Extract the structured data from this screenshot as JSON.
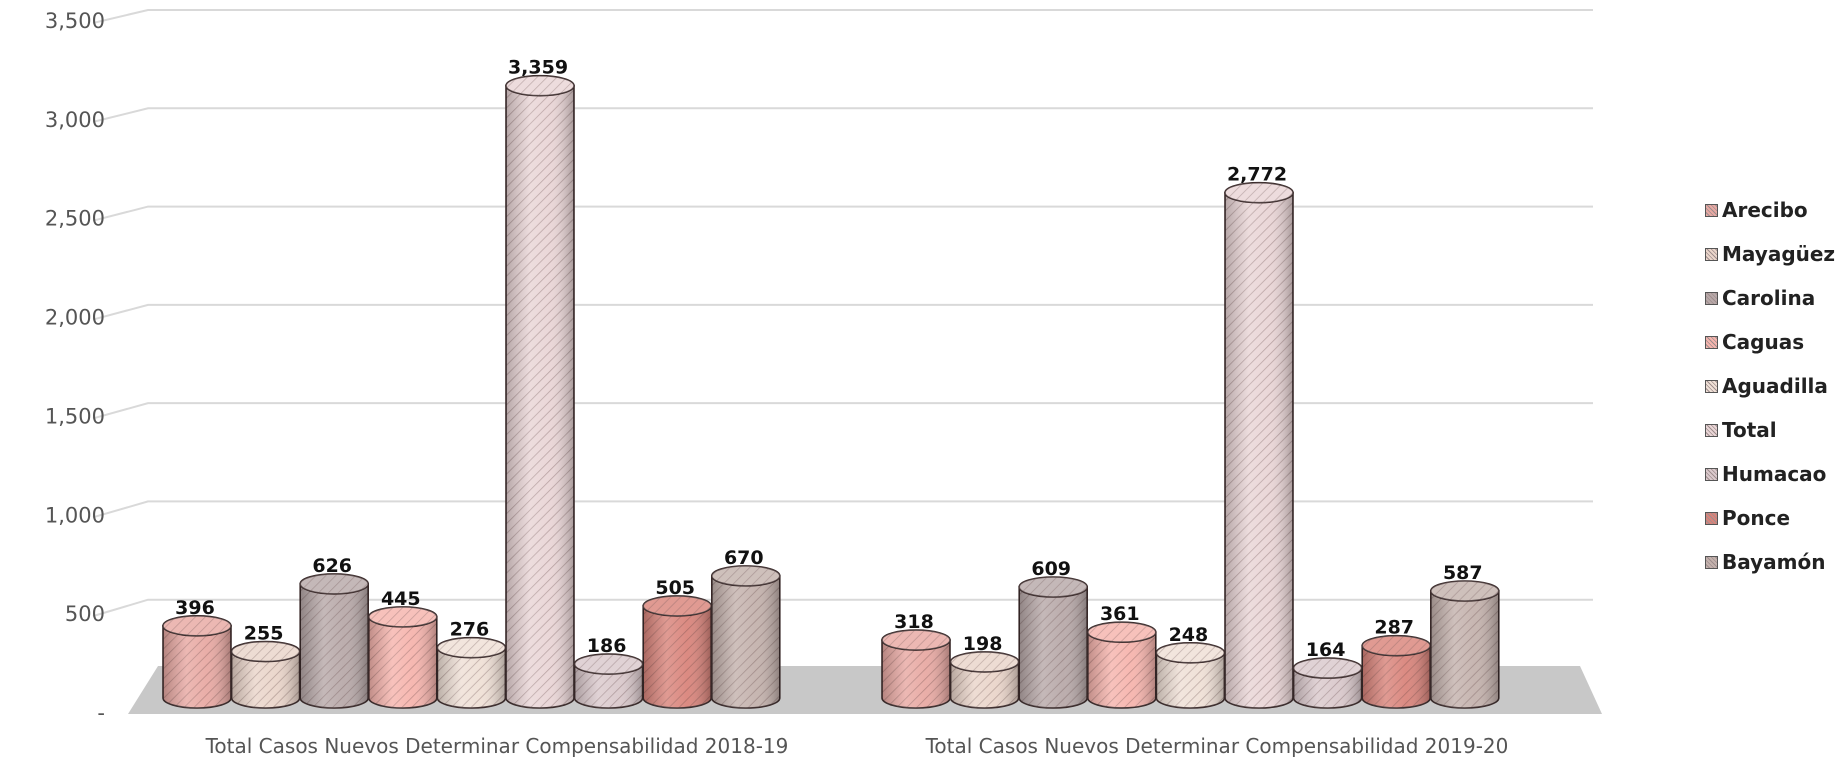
{
  "chart_data": {
    "type": "bar",
    "style": "3d-cylinder",
    "categories": [
      "Total Casos Nuevos Determinar Compensabilidad 2018-19",
      "Total Casos Nuevos Determinar Compensabilidad 2019-20"
    ],
    "series": [
      {
        "name": "Arecibo",
        "values": [
          396,
          318
        ],
        "color": "#e8a9a3"
      },
      {
        "name": "Mayagüez",
        "values": [
          255,
          198
        ],
        "color": "#ead5ca"
      },
      {
        "name": "Carolina",
        "values": [
          626,
          609
        ],
        "color": "#b8a9a9"
      },
      {
        "name": "Caguas",
        "values": [
          445,
          361
        ],
        "color": "#f6b4ad"
      },
      {
        "name": "Aguadilla",
        "values": [
          276,
          248
        ],
        "color": "#efe0d6"
      },
      {
        "name": "Total",
        "values": [
          3359,
          2772
        ],
        "color": "#e9d5d6"
      },
      {
        "name": "Humacao",
        "values": [
          186,
          164
        ],
        "color": "#dac9cc"
      },
      {
        "name": "Ponce",
        "values": [
          505,
          287
        ],
        "color": "#d9847b"
      },
      {
        "name": "Bayamón",
        "values": [
          670,
          587
        ],
        "color": "#c4b2ad"
      }
    ],
    "data_labels": [
      [
        "396",
        "318"
      ],
      [
        "255",
        "198"
      ],
      [
        "626",
        "609"
      ],
      [
        "445",
        "361"
      ],
      [
        "276",
        "248"
      ],
      [
        "3,359",
        "2,772"
      ],
      [
        "186",
        "164"
      ],
      [
        "505",
        "287"
      ],
      [
        "670",
        "587"
      ]
    ],
    "y_ticks": [
      {
        "value": 0,
        "label": "-"
      },
      {
        "value": 500,
        "label": "500"
      },
      {
        "value": 1000,
        "label": "1,000"
      },
      {
        "value": 1500,
        "label": "1,500"
      },
      {
        "value": 2000,
        "label": "2,000"
      },
      {
        "value": 2500,
        "label": "2,500"
      },
      {
        "value": 3000,
        "label": "3,000"
      },
      {
        "value": 3500,
        "label": "3,500"
      }
    ],
    "ylim": [
      0,
      3500
    ],
    "title": "",
    "xlabel": "",
    "ylabel": "",
    "grid": true,
    "legend_position": "right"
  }
}
